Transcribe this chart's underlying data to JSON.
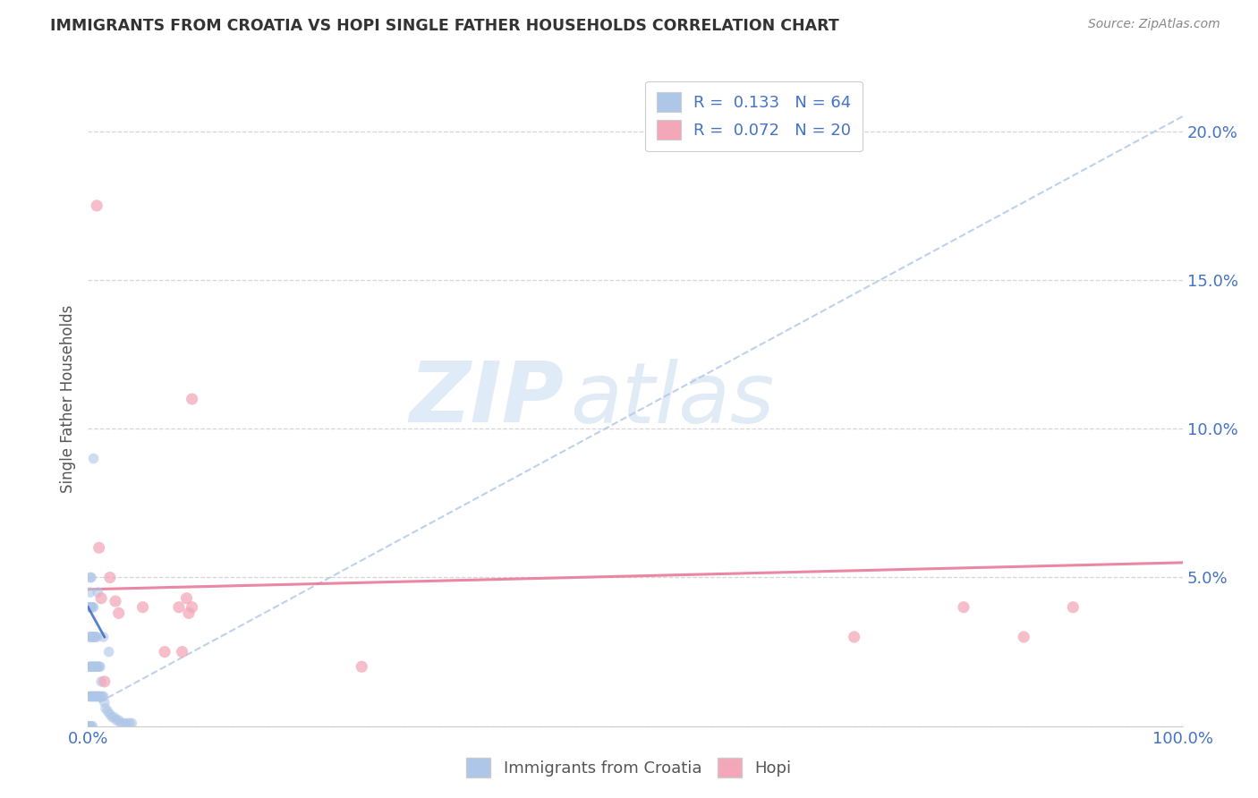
{
  "title": "IMMIGRANTS FROM CROATIA VS HOPI SINGLE FATHER HOUSEHOLDS CORRELATION CHART",
  "source": "Source: ZipAtlas.com",
  "ylabel": "Single Father Households",
  "xlim": [
    0,
    1.0
  ],
  "ylim": [
    0,
    0.22
  ],
  "x_ticks": [
    0.0,
    0.1,
    0.2,
    0.3,
    0.4,
    0.5,
    0.6,
    0.7,
    0.8,
    0.9,
    1.0
  ],
  "y_ticks": [
    0.0,
    0.05,
    0.1,
    0.15,
    0.2
  ],
  "legend_entries": [
    {
      "label": "R =  0.133   N = 64",
      "color": "#aec6e8"
    },
    {
      "label": "R =  0.072   N = 20",
      "color": "#f4a7b9"
    }
  ],
  "legend_bottom": [
    "Immigrants from Croatia",
    "Hopi"
  ],
  "blue_scatter_x": [
    0.001,
    0.001,
    0.001,
    0.001,
    0.001,
    0.001,
    0.001,
    0.002,
    0.002,
    0.002,
    0.002,
    0.002,
    0.002,
    0.002,
    0.003,
    0.003,
    0.003,
    0.003,
    0.003,
    0.003,
    0.004,
    0.004,
    0.004,
    0.004,
    0.004,
    0.005,
    0.005,
    0.005,
    0.005,
    0.006,
    0.006,
    0.006,
    0.007,
    0.007,
    0.007,
    0.008,
    0.008,
    0.008,
    0.009,
    0.009,
    0.01,
    0.01,
    0.011,
    0.011,
    0.012,
    0.013,
    0.014,
    0.015,
    0.016,
    0.018,
    0.02,
    0.022,
    0.024,
    0.026,
    0.028,
    0.03,
    0.032,
    0.035,
    0.038,
    0.04,
    0.005,
    0.009,
    0.014,
    0.019
  ],
  "blue_scatter_y": [
    0.0,
    0.0,
    0.0,
    0.01,
    0.02,
    0.03,
    0.04,
    0.0,
    0.01,
    0.02,
    0.03,
    0.04,
    0.045,
    0.05,
    0.0,
    0.01,
    0.02,
    0.03,
    0.04,
    0.05,
    0.0,
    0.01,
    0.02,
    0.03,
    0.04,
    0.01,
    0.02,
    0.03,
    0.04,
    0.01,
    0.02,
    0.03,
    0.01,
    0.02,
    0.03,
    0.01,
    0.02,
    0.03,
    0.01,
    0.02,
    0.01,
    0.02,
    0.01,
    0.02,
    0.015,
    0.01,
    0.01,
    0.008,
    0.006,
    0.005,
    0.004,
    0.003,
    0.003,
    0.002,
    0.002,
    0.001,
    0.001,
    0.001,
    0.001,
    0.001,
    0.09,
    0.045,
    0.03,
    0.025
  ],
  "pink_scatter_x": [
    0.008,
    0.01,
    0.012,
    0.015,
    0.02,
    0.025,
    0.028,
    0.05,
    0.07,
    0.083,
    0.086,
    0.09,
    0.092,
    0.095,
    0.095,
    0.25,
    0.7,
    0.8,
    0.855,
    0.9
  ],
  "pink_scatter_y": [
    0.175,
    0.06,
    0.043,
    0.015,
    0.05,
    0.042,
    0.038,
    0.04,
    0.025,
    0.04,
    0.025,
    0.043,
    0.038,
    0.04,
    0.11,
    0.02,
    0.03,
    0.04,
    0.03,
    0.04
  ],
  "blue_dashed_line_x": [
    0.01,
    1.0
  ],
  "blue_dashed_line_y": [
    0.008,
    0.205
  ],
  "blue_solid_line_x": [
    0.0,
    0.015
  ],
  "blue_solid_line_y": [
    0.04,
    0.03
  ],
  "pink_line_x": [
    0.0,
    1.0
  ],
  "pink_line_y": [
    0.046,
    0.055
  ],
  "background_color": "#ffffff",
  "grid_color": "#cccccc",
  "blue_color": "#aec6e8",
  "pink_color": "#f4a7b9",
  "blue_dashed_color": "#aec6e8",
  "blue_solid_color": "#4472c4",
  "pink_line_color": "#e87a9a",
  "title_color": "#333333",
  "tick_label_color": "#4472c4"
}
